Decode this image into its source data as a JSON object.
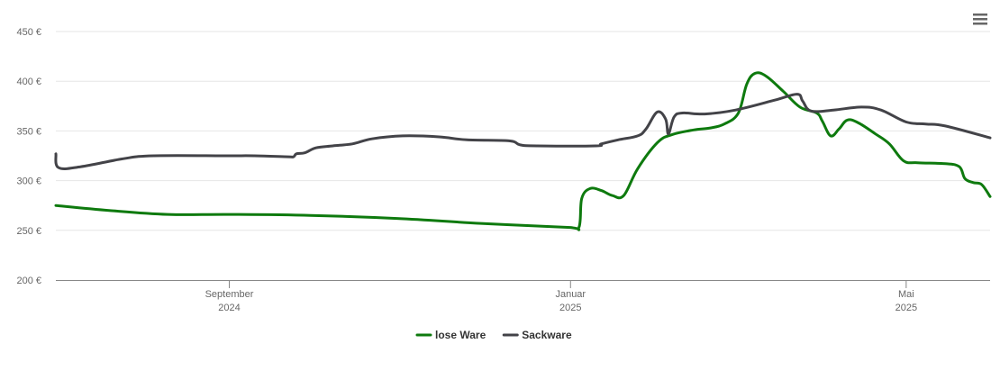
{
  "chart_data": {
    "type": "line",
    "title": "",
    "xlabel": "",
    "ylabel": "",
    "ylim": [
      200,
      450
    ],
    "y_ticks": [
      {
        "value": 200,
        "label": "200 €"
      },
      {
        "value": 250,
        "label": "250 €"
      },
      {
        "value": 300,
        "label": "300 €"
      },
      {
        "value": 350,
        "label": "350 €"
      },
      {
        "value": 400,
        "label": "400 €"
      },
      {
        "value": 450,
        "label": "450 €"
      }
    ],
    "xlim": [
      "2024-07-01",
      "2025-05-31"
    ],
    "x_ticks": [
      {
        "date": "2024-09-01",
        "line1": "September",
        "line2": "2024"
      },
      {
        "date": "2025-01-01",
        "line1": "Januar",
        "line2": "2025"
      },
      {
        "date": "2025-05-01",
        "line1": "Mai",
        "line2": "2025"
      }
    ],
    "grid": true,
    "legend_position": "bottom-center",
    "menu_icon": "hamburger-menu-icon",
    "series": [
      {
        "name": "lose Ware",
        "color": "#0e7a0e",
        "points": [
          [
            "2024-07-01",
            275
          ],
          [
            "2024-07-20",
            270
          ],
          [
            "2024-08-10",
            266
          ],
          [
            "2024-09-01",
            266
          ],
          [
            "2024-09-30",
            265
          ],
          [
            "2024-10-31",
            262
          ],
          [
            "2024-11-30",
            257
          ],
          [
            "2024-12-31",
            253
          ],
          [
            "2025-01-04",
            253
          ],
          [
            "2025-01-05",
            282
          ],
          [
            "2025-01-08",
            292
          ],
          [
            "2025-01-12",
            290
          ],
          [
            "2025-01-16",
            285
          ],
          [
            "2025-01-20",
            285
          ],
          [
            "2025-01-25",
            312
          ],
          [
            "2025-02-01",
            338
          ],
          [
            "2025-02-06",
            346
          ],
          [
            "2025-02-14",
            351
          ],
          [
            "2025-02-20",
            353
          ],
          [
            "2025-02-25",
            357
          ],
          [
            "2025-03-02",
            368
          ],
          [
            "2025-03-05",
            397
          ],
          [
            "2025-03-08",
            408
          ],
          [
            "2025-03-12",
            405
          ],
          [
            "2025-03-18",
            390
          ],
          [
            "2025-03-24",
            374
          ],
          [
            "2025-03-30",
            368
          ],
          [
            "2025-04-01",
            360
          ],
          [
            "2025-04-04",
            345
          ],
          [
            "2025-04-07",
            352
          ],
          [
            "2025-04-10",
            361
          ],
          [
            "2025-04-14",
            358
          ],
          [
            "2025-04-20",
            347
          ],
          [
            "2025-04-25",
            337
          ],
          [
            "2025-04-30",
            320
          ],
          [
            "2025-05-05",
            318
          ],
          [
            "2025-05-15",
            317
          ],
          [
            "2025-05-20",
            314
          ],
          [
            "2025-05-22",
            302
          ],
          [
            "2025-05-25",
            298
          ],
          [
            "2025-05-28",
            296
          ],
          [
            "2025-05-31",
            284
          ]
        ]
      },
      {
        "name": "Sackware",
        "color": "#434348",
        "points": [
          [
            "2024-07-01",
            327
          ],
          [
            "2024-07-02",
            313
          ],
          [
            "2024-07-10",
            314
          ],
          [
            "2024-07-25",
            322
          ],
          [
            "2024-08-05",
            325
          ],
          [
            "2024-08-31",
            325
          ],
          [
            "2024-09-10",
            325
          ],
          [
            "2024-09-22",
            324
          ],
          [
            "2024-09-24",
            324
          ],
          [
            "2024-09-25",
            327
          ],
          [
            "2024-09-28",
            328
          ],
          [
            "2024-10-02",
            333
          ],
          [
            "2024-10-08",
            335
          ],
          [
            "2024-10-15",
            337
          ],
          [
            "2024-10-22",
            342
          ],
          [
            "2024-11-02",
            345
          ],
          [
            "2024-11-15",
            344
          ],
          [
            "2024-11-25",
            341
          ],
          [
            "2024-12-10",
            340
          ],
          [
            "2024-12-14",
            336
          ],
          [
            "2024-12-20",
            335
          ],
          [
            "2025-01-10",
            335
          ],
          [
            "2025-01-12",
            337
          ],
          [
            "2025-01-18",
            341
          ],
          [
            "2025-01-25",
            345
          ],
          [
            "2025-01-28",
            352
          ],
          [
            "2025-02-01",
            369
          ],
          [
            "2025-02-04",
            362
          ],
          [
            "2025-02-05",
            347
          ],
          [
            "2025-02-07",
            364
          ],
          [
            "2025-02-10",
            368
          ],
          [
            "2025-02-18",
            367
          ],
          [
            "2025-03-01",
            371
          ],
          [
            "2025-03-15",
            381
          ],
          [
            "2025-03-23",
            387
          ],
          [
            "2025-03-25",
            380
          ],
          [
            "2025-03-28",
            370
          ],
          [
            "2025-04-05",
            371
          ],
          [
            "2025-04-15",
            374
          ],
          [
            "2025-04-22",
            371
          ],
          [
            "2025-05-01",
            359
          ],
          [
            "2025-05-08",
            357
          ],
          [
            "2025-05-15",
            355
          ],
          [
            "2025-05-31",
            343
          ]
        ]
      }
    ]
  }
}
